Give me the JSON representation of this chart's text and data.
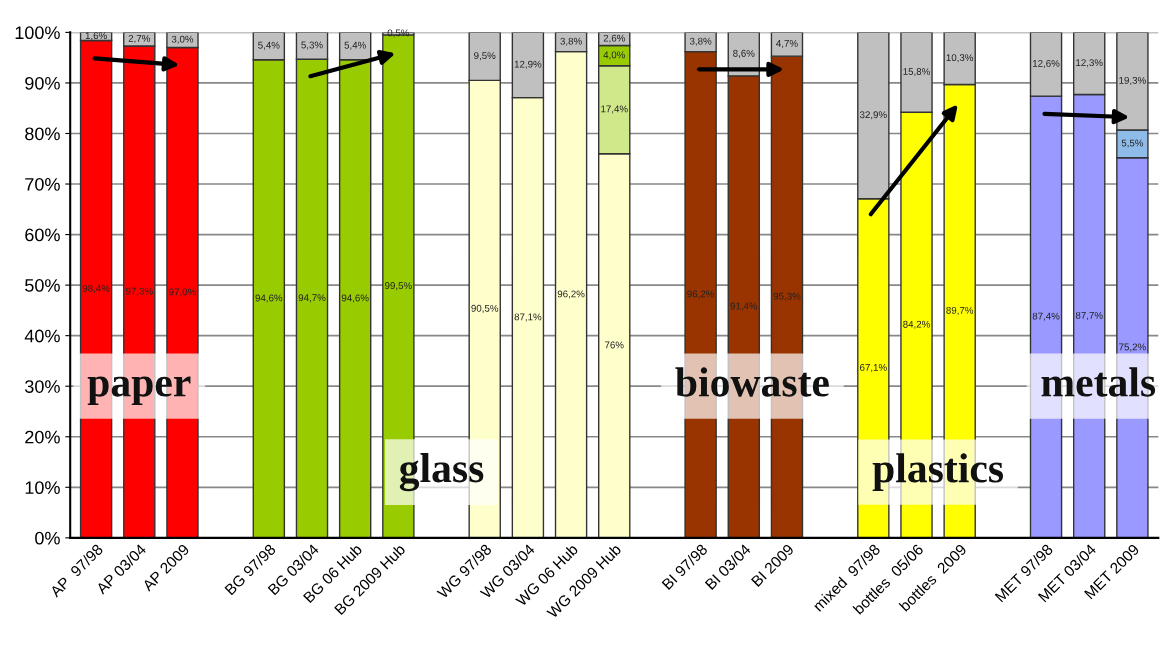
{
  "chart_data": {
    "type": "bar",
    "stacked": true,
    "categories": [
      "AP  97/98",
      "AP 03/04",
      "AP 2009",
      null,
      "BG 97/98",
      "BG 03/04",
      "BG 06 Hub",
      "BG 2009 Hub",
      null,
      "WG 97/98",
      "WG 03/04",
      "WG 06 Hub",
      "WG 2009 Hub",
      null,
      "BI 97/98",
      "BI 03/04",
      "BI 2009",
      null,
      "mixed  97/98",
      "bottles  05/06",
      "bottles  2009",
      null,
      "MET 97/98",
      "MET 03/04",
      "MET 2009"
    ],
    "series": [
      {
        "colors": [
          "#ff0000",
          "#ff0000",
          "#ff0000",
          null,
          "#99cc00",
          "#99cc00",
          "#99cc00",
          "#99cc00",
          null,
          "#ffffcc",
          "#ffffcc",
          "#ffffcc",
          "#ffffcc",
          null,
          "#993300",
          "#993300",
          "#993300",
          null,
          "#ffff00",
          "#ffff00",
          "#ffff00",
          null,
          "#9999ff",
          "#9999ff",
          "#9999ff"
        ],
        "values": [
          98.4,
          97.3,
          97.0,
          null,
          94.6,
          94.7,
          94.6,
          99.5,
          null,
          90.5,
          87.1,
          96.2,
          76,
          null,
          96.2,
          91.4,
          95.3,
          null,
          67.1,
          84.2,
          89.7,
          null,
          87.4,
          87.7,
          75.2
        ],
        "value_labels": [
          "98,4%",
          "97,3%",
          "97,0%",
          null,
          "94,6%",
          "94,7%",
          "94,6%",
          "99,5%",
          null,
          "90,5%",
          "87,1%",
          "96,2%",
          "76%",
          null,
          "96,2%",
          "91,4%",
          "95,3%",
          null,
          "67,1%",
          "84,2%",
          "89,7%",
          null,
          "87,4%",
          "87,7%",
          "75,2%"
        ]
      },
      {
        "colors": [
          null,
          null,
          null,
          null,
          null,
          null,
          null,
          null,
          null,
          null,
          null,
          null,
          "#cfe88a",
          null,
          null,
          null,
          null,
          null,
          null,
          null,
          null,
          null,
          null,
          null,
          "#8fbbe8"
        ],
        "values": [
          null,
          null,
          null,
          null,
          null,
          null,
          null,
          null,
          null,
          null,
          null,
          null,
          17.4,
          null,
          null,
          null,
          null,
          null,
          null,
          null,
          null,
          null,
          null,
          null,
          5.5
        ],
        "value_labels": [
          null,
          null,
          null,
          null,
          null,
          null,
          null,
          null,
          null,
          null,
          null,
          null,
          "17,4%",
          null,
          null,
          null,
          null,
          null,
          null,
          null,
          null,
          null,
          null,
          null,
          "5,5%"
        ]
      },
      {
        "colors": [
          null,
          null,
          null,
          null,
          null,
          null,
          null,
          null,
          null,
          null,
          null,
          null,
          "#99cc00",
          null,
          null,
          null,
          null,
          null,
          null,
          null,
          null,
          null,
          null,
          null,
          null
        ],
        "values": [
          null,
          null,
          null,
          null,
          null,
          null,
          null,
          null,
          null,
          null,
          null,
          null,
          4.0,
          null,
          null,
          null,
          null,
          null,
          null,
          null,
          null,
          null,
          null,
          null,
          null
        ],
        "value_labels": [
          null,
          null,
          null,
          null,
          null,
          null,
          null,
          null,
          null,
          null,
          null,
          null,
          "4,0%",
          null,
          null,
          null,
          null,
          null,
          null,
          null,
          null,
          null,
          null,
          null,
          null
        ]
      },
      {
        "color": "#c0c0c0",
        "values": [
          1.6,
          2.7,
          3.0,
          null,
          5.4,
          5.3,
          5.4,
          0.5,
          null,
          9.5,
          12.9,
          3.8,
          2.6,
          null,
          3.8,
          8.6,
          4.7,
          null,
          32.9,
          15.8,
          10.3,
          null,
          12.6,
          12.3,
          19.3
        ],
        "value_labels": [
          "1,6%",
          "2,7%",
          "3,0%",
          null,
          "5,4%",
          "5,3%",
          "5,4%",
          "0,5%",
          null,
          "9,5%",
          "12,9%",
          "3,8%",
          "2,6%",
          null,
          "3,8%",
          "8,6%",
          "4,7%",
          null,
          "32,9%",
          "15,8%",
          "10,3%",
          null,
          "12,6%",
          "12,3%",
          "19,3%"
        ]
      }
    ],
    "ylim": [
      0,
      100
    ],
    "yticks": [
      {
        "value": 0,
        "label": "0%"
      },
      {
        "value": 10,
        "label": "10%"
      },
      {
        "value": 20,
        "label": "20%"
      },
      {
        "value": 30,
        "label": "30%"
      },
      {
        "value": 40,
        "label": "40%"
      },
      {
        "value": 50,
        "label": "50%"
      },
      {
        "value": 60,
        "label": "60%"
      },
      {
        "value": 70,
        "label": "70%"
      },
      {
        "value": 80,
        "label": "80%"
      },
      {
        "value": 90,
        "label": "90%"
      },
      {
        "value": 100,
        "label": "100%"
      }
    ],
    "grid": "y",
    "legend": false,
    "annotations": [
      "paper",
      "glass",
      "biowaste",
      "plastics",
      "metals"
    ]
  }
}
